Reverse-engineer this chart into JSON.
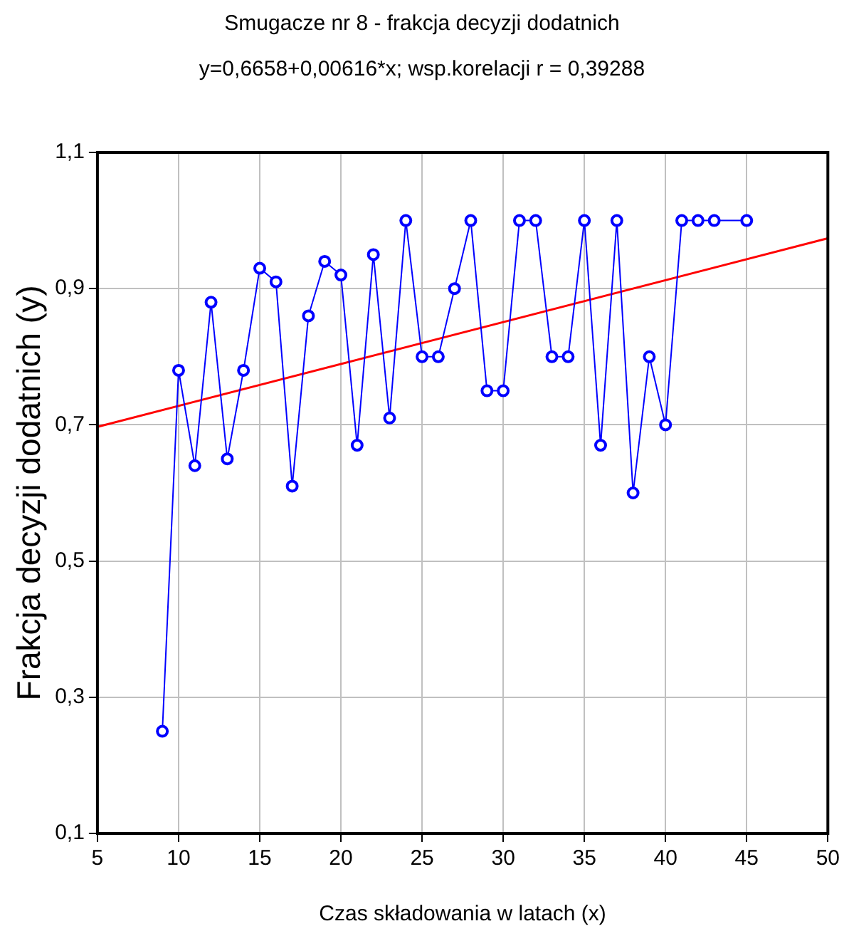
{
  "chart_data": {
    "type": "line",
    "title": "Smugacze nr 8 - frakcja decyzji dodatnich",
    "subtitle": "y=0,6658+0,00616*x; wsp.korelacji r = 0,39288",
    "xlabel": "Czas składowania w latach (x)",
    "ylabel": "Frakcja decyzji dodatnich (y)",
    "series": [
      {
        "color": "#0000ff",
        "marker": "circle",
        "x": [
          9,
          10,
          11,
          12,
          13,
          14,
          15,
          16,
          17,
          18,
          19,
          20,
          21,
          22,
          23,
          24,
          25,
          26,
          27,
          28,
          29,
          30,
          31,
          32,
          33,
          34,
          35,
          36,
          37,
          38,
          39,
          40,
          41,
          42,
          43,
          45
        ],
        "values": [
          0.25,
          0.78,
          0.64,
          0.88,
          0.65,
          0.78,
          0.93,
          0.91,
          0.61,
          0.86,
          0.94,
          0.92,
          0.67,
          0.95,
          0.71,
          1.0,
          0.8,
          0.8,
          0.9,
          1.0,
          0.75,
          0.75,
          1.0,
          1.0,
          0.8,
          0.8,
          1.0,
          0.67,
          1.0,
          0.6,
          0.8,
          0.7,
          1.0,
          1.0,
          1.0,
          1.0
        ]
      },
      {
        "color": "#ff0000",
        "marker": "none",
        "x": [
          5,
          50
        ],
        "values": [
          0.697,
          0.974
        ]
      }
    ],
    "xlim": [
      5,
      50
    ],
    "xticks": [
      5,
      10,
      15,
      20,
      25,
      30,
      35,
      40,
      45,
      50
    ],
    "ylim": [
      0.1,
      1.1
    ],
    "yticks": [
      {
        "value": 0.1,
        "label": "0,1"
      },
      {
        "value": 0.3,
        "label": "0,3"
      },
      {
        "value": 0.5,
        "label": "0,5"
      },
      {
        "value": 0.7,
        "label": "0,7"
      },
      {
        "value": 0.9,
        "label": "0,9"
      },
      {
        "value": 1.1,
        "label": "1,1"
      }
    ],
    "grid": true,
    "legend": false
  }
}
